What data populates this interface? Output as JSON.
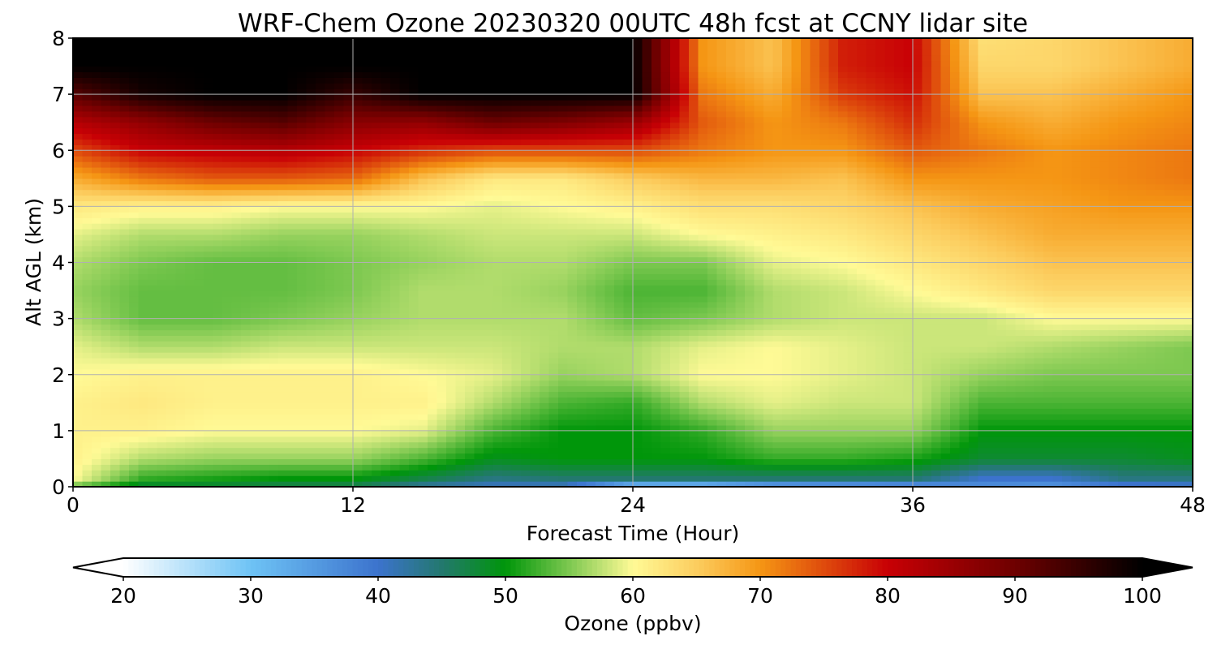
{
  "chart_data": {
    "type": "heatmap",
    "title": "WRF-Chem Ozone  20230320 00UTC 48h fcst at CCNY lidar site",
    "xlabel": "Forecast Time (Hour)",
    "ylabel": "Alt AGL (km)",
    "xlim": [
      0,
      48
    ],
    "ylim": [
      0,
      8
    ],
    "xticks": [
      "0",
      "12",
      "24",
      "36",
      "48"
    ],
    "yticks": [
      "0",
      "1",
      "2",
      "3",
      "4",
      "5",
      "6",
      "7",
      "8"
    ],
    "grid": true,
    "colorbar": {
      "label": "Ozone  (ppbv)",
      "min": 20,
      "max": 100,
      "extend": "both",
      "ticks": [
        "20",
        "30",
        "40",
        "50",
        "60",
        "70",
        "80",
        "90",
        "100"
      ]
    },
    "x_hours": [
      0,
      3,
      6,
      9,
      12,
      15,
      18,
      21,
      24,
      27,
      30,
      33,
      36,
      39,
      42,
      45,
      48
    ],
    "z_km": [
      0,
      0.15,
      0.5,
      1,
      1.5,
      2,
      2.5,
      3,
      3.5,
      4,
      4.5,
      5,
      5.5,
      6,
      6.5,
      7,
      7.5,
      8
    ],
    "ozone_ppbv": [
      [
        54,
        60,
        61,
        61,
        61,
        60,
        59,
        57,
        56,
        57,
        59,
        62,
        68,
        75,
        82,
        92,
        100,
        100
      ],
      [
        47,
        52,
        57,
        61,
        62,
        61,
        57,
        54,
        54,
        55,
        57,
        61,
        72,
        80,
        86,
        98,
        100,
        100
      ],
      [
        47,
        51,
        56,
        60,
        61,
        61,
        57,
        54,
        54,
        54,
        57,
        61,
        74,
        81,
        90,
        100,
        100,
        100
      ],
      [
        46,
        50,
        56,
        60,
        61,
        61,
        58,
        55,
        54,
        54,
        56,
        60,
        74,
        82,
        92,
        100,
        100,
        100
      ],
      [
        46,
        50,
        56,
        60,
        61,
        61,
        58,
        56,
        55,
        55,
        56,
        60,
        73,
        80,
        87,
        95,
        100,
        100
      ],
      [
        42,
        47,
        53,
        59,
        61,
        60,
        58,
        57,
        57,
        56,
        57,
        60,
        66,
        77,
        86,
        100,
        100,
        100
      ],
      [
        40,
        44,
        49,
        53,
        57,
        59,
        58,
        57,
        57,
        57,
        58,
        59,
        62,
        75,
        90,
        100,
        100,
        100
      ],
      [
        40,
        45,
        50,
        50,
        53,
        56,
        57,
        57,
        56,
        57,
        58,
        60,
        62,
        75,
        88,
        100,
        100,
        100
      ],
      [
        28,
        45,
        50,
        50,
        52,
        57,
        57,
        54,
        53,
        55,
        58,
        61,
        65,
        75,
        85,
        100,
        100,
        100
      ],
      [
        28,
        45,
        50,
        52,
        57,
        60,
        59,
        55,
        53,
        55,
        60,
        63,
        67,
        72,
        74,
        72,
        70,
        70
      ],
      [
        32,
        45,
        52,
        56,
        59,
        60,
        60,
        57,
        57,
        59,
        61,
        63,
        67,
        70,
        70,
        68,
        66,
        66
      ],
      [
        33,
        45,
        52,
        56,
        58,
        59,
        59,
        58,
        58,
        60,
        62,
        64,
        66,
        70,
        72,
        76,
        78,
        78
      ],
      [
        34,
        45,
        51,
        56,
        58,
        58,
        58,
        58,
        60,
        62,
        64,
        66,
        70,
        74,
        77,
        79,
        80,
        80
      ],
      [
        36,
        40,
        48,
        50,
        53,
        56,
        58,
        58,
        62,
        64,
        66,
        68,
        70,
        72,
        70,
        66,
        64,
        63
      ],
      [
        35,
        40,
        48,
        50,
        53,
        55,
        57,
        60,
        64,
        66,
        68,
        69,
        70,
        70,
        68,
        66,
        64,
        64
      ],
      [
        38,
        44,
        48,
        50,
        53,
        55,
        56,
        60,
        64,
        66,
        68,
        70,
        71,
        71,
        70,
        68,
        66,
        66
      ],
      [
        39,
        44,
        49,
        50,
        53,
        55,
        55,
        60,
        64,
        66,
        68,
        70,
        72,
        72,
        71,
        70,
        68,
        68
      ]
    ]
  }
}
